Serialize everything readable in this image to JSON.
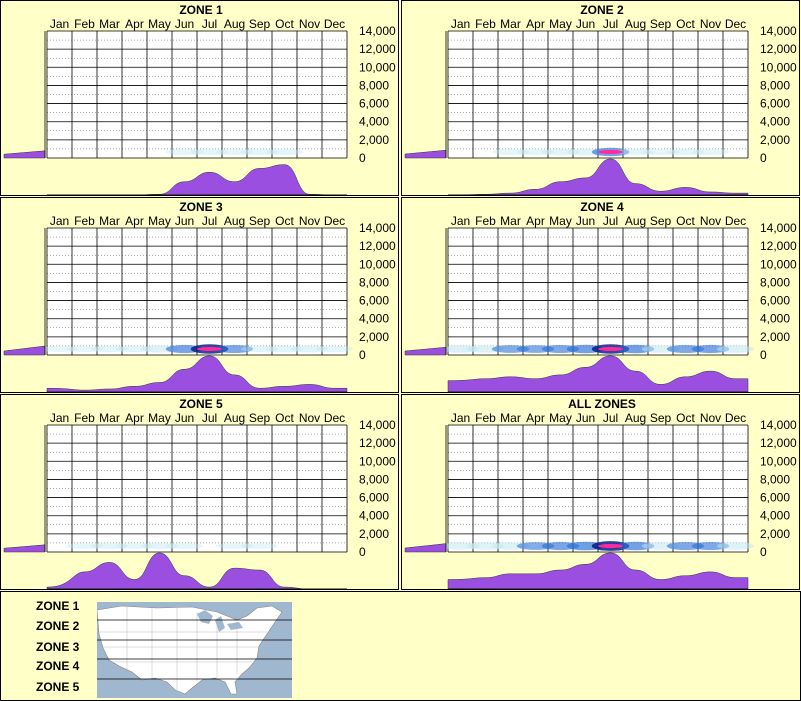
{
  "months": [
    "Jan",
    "Feb",
    "Mar",
    "Apr",
    "May",
    "Jun",
    "Jul",
    "Aug",
    "Sep",
    "Oct",
    "Nov",
    "Dec"
  ],
  "y_ticks": [
    "14,000",
    "12,000",
    "10,000",
    "8,000",
    "6,000",
    "4,000",
    "2,000",
    "0"
  ],
  "colors": {
    "background": "#ffffc8",
    "profile": "#9b4fe0",
    "density_light": "#bfe8f0",
    "density_mid": "#2a6fd6",
    "density_high": "#001a80",
    "density_peak": "#ff2aa0",
    "map_water": "#9fb7cf",
    "map_land": "#ffffff"
  },
  "chart_data": [
    {
      "type": "heatmap",
      "title": "ZONE 1",
      "x": [
        "Jan",
        "Feb",
        "Mar",
        "Apr",
        "May",
        "Jun",
        "Jul",
        "Aug",
        "Sep",
        "Oct",
        "Nov",
        "Dec"
      ],
      "ylim": [
        0,
        14000
      ],
      "grid": true,
      "monthly_profile": [
        0,
        0,
        0,
        0,
        0.02,
        0.35,
        0.6,
        0.35,
        0.7,
        0.8,
        0.02,
        0
      ],
      "elevation_profile": [
        0.2,
        0.35
      ],
      "density": [
        0,
        0,
        0,
        0,
        0,
        0.05,
        0.1,
        0.05,
        0.1,
        0.12,
        0,
        0
      ]
    },
    {
      "type": "heatmap",
      "title": "ZONE 2",
      "x": [
        "Jan",
        "Feb",
        "Mar",
        "Apr",
        "May",
        "Jun",
        "Jul",
        "Aug",
        "Sep",
        "Oct",
        "Nov",
        "Dec"
      ],
      "ylim": [
        0,
        14000
      ],
      "grid": true,
      "monthly_profile": [
        0,
        0.02,
        0.05,
        0.15,
        0.35,
        0.45,
        0.95,
        0.3,
        0.1,
        0.2,
        0.08,
        0.05
      ],
      "elevation_profile": [
        0.25,
        0.4
      ],
      "density": [
        0,
        0,
        0.05,
        0.1,
        0.15,
        0.25,
        0.6,
        0.15,
        0.05,
        0.1,
        0.05,
        0
      ]
    },
    {
      "type": "heatmap",
      "title": "ZONE 3",
      "x": [
        "Jan",
        "Feb",
        "Mar",
        "Apr",
        "May",
        "Jun",
        "Jul",
        "Aug",
        "Sep",
        "Oct",
        "Nov",
        "Dec"
      ],
      "ylim": [
        0,
        14000
      ],
      "grid": true,
      "monthly_profile": [
        0.1,
        0.05,
        0.08,
        0.15,
        0.25,
        0.6,
        0.95,
        0.45,
        0.1,
        0.15,
        0.2,
        0.1
      ],
      "elevation_profile": [
        0.25,
        0.5
      ],
      "density": [
        0.05,
        0.05,
        0.1,
        0.15,
        0.3,
        0.55,
        0.9,
        0.5,
        0.15,
        0.2,
        0.25,
        0.1
      ]
    },
    {
      "type": "heatmap",
      "title": "ZONE 4",
      "x": [
        "Jan",
        "Feb",
        "Mar",
        "Apr",
        "May",
        "Jun",
        "Jul",
        "Aug",
        "Sep",
        "Oct",
        "Nov",
        "Dec"
      ],
      "ylim": [
        0,
        14000
      ],
      "grid": true,
      "monthly_profile": [
        0.3,
        0.35,
        0.4,
        0.35,
        0.45,
        0.65,
        0.95,
        0.55,
        0.2,
        0.4,
        0.55,
        0.35
      ],
      "elevation_profile": [
        0.25,
        0.4
      ],
      "density": [
        0.4,
        0.4,
        0.45,
        0.45,
        0.5,
        0.6,
        0.9,
        0.6,
        0.4,
        0.5,
        0.55,
        0.4
      ]
    },
    {
      "type": "heatmap",
      "title": "ZONE 5",
      "x": [
        "Jan",
        "Feb",
        "Mar",
        "Apr",
        "May",
        "Jun",
        "Jul",
        "Aug",
        "Sep",
        "Oct",
        "Nov",
        "Dec"
      ],
      "ylim": [
        0,
        14000
      ],
      "grid": true,
      "monthly_profile": [
        0.05,
        0.45,
        0.7,
        0.25,
        0.95,
        0.35,
        0.05,
        0.55,
        0.5,
        0.05,
        0,
        0
      ],
      "elevation_profile": [
        0.2,
        0.35
      ],
      "density": [
        0,
        0.05,
        0.1,
        0.05,
        0.15,
        0.05,
        0,
        0.05,
        0.05,
        0,
        0,
        0
      ]
    },
    {
      "type": "heatmap",
      "title": "ALL ZONES",
      "x": [
        "Jan",
        "Feb",
        "Mar",
        "Apr",
        "May",
        "Jun",
        "Jul",
        "Aug",
        "Sep",
        "Oct",
        "Nov",
        "Dec"
      ],
      "ylim": [
        0,
        14000
      ],
      "grid": true,
      "monthly_profile": [
        0.25,
        0.3,
        0.4,
        0.4,
        0.5,
        0.65,
        0.95,
        0.5,
        0.25,
        0.35,
        0.45,
        0.3
      ],
      "elevation_profile": [
        0.25,
        0.45
      ],
      "density": [
        0.35,
        0.35,
        0.4,
        0.45,
        0.55,
        0.65,
        0.95,
        0.6,
        0.4,
        0.5,
        0.5,
        0.35
      ]
    }
  ],
  "legend": {
    "zones": [
      "ZONE 1",
      "ZONE 2",
      "ZONE 3",
      "ZONE 4",
      "ZONE 5"
    ]
  }
}
